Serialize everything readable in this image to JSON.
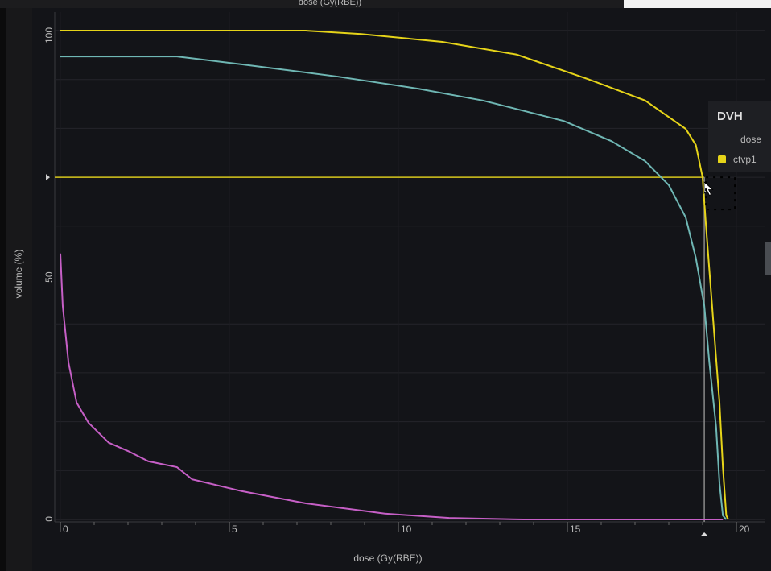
{
  "chart_data": {
    "type": "line",
    "top_label": "dose (Gy(RBE))",
    "x_label": "dose (Gy(RBE))",
    "y_label": "volume (%)",
    "legend_title": "DVH",
    "legend_subtitle": "dose",
    "xlim": [
      0,
      20
    ],
    "ylim": [
      0,
      100
    ],
    "xticks": [
      0,
      5,
      10,
      15,
      20
    ],
    "xminorticks": [
      1,
      2,
      3,
      4,
      6,
      7,
      8,
      9,
      11,
      12,
      13,
      14,
      16,
      17,
      18,
      19
    ],
    "yticks": [
      0,
      50,
      100
    ],
    "ygrid": [
      10,
      20,
      30,
      40,
      60,
      70,
      80,
      90
    ],
    "grid": true,
    "cursor": {
      "dose": 19.05,
      "volume": 70,
      "color": "#d6c61c",
      "line_color": "#8a8a8a"
    },
    "series": [
      {
        "name": "ctvp1",
        "color": "#e6d419",
        "x": [
          0,
          7.26,
          8.9,
          11.3,
          13.5,
          15.6,
          17.3,
          18.5,
          18.8,
          19.0,
          19.1,
          19.3,
          19.5,
          19.6,
          19.7,
          19.76
        ],
        "values": [
          100,
          100,
          99.3,
          97.7,
          95.1,
          90.1,
          85.7,
          79.9,
          76.6,
          70,
          60.1,
          42,
          23.9,
          10.7,
          0.8,
          0
        ]
      },
      {
        "color": "#6fb7b4",
        "x": [
          0,
          3.45,
          5.36,
          8.2,
          10.6,
          12.5,
          14.9,
          16.3,
          17.3,
          18,
          18.5,
          18.8,
          19.05,
          19.2,
          19.4,
          19.5,
          19.6,
          19.7
        ],
        "values": [
          94.7,
          94.7,
          93.1,
          90.6,
          88.1,
          85.7,
          81.5,
          77.4,
          73.3,
          68.4,
          61.8,
          53.5,
          43.7,
          32.1,
          18.9,
          7.4,
          0.8,
          0
        ]
      },
      {
        "color": "#c65fc6",
        "x": [
          0,
          0.07,
          0.24,
          0.48,
          0.83,
          1.43,
          2.0,
          2.6,
          3.45,
          3.9,
          5.36,
          7.26,
          9.6,
          11.5,
          13.7,
          19.6
        ],
        "values": [
          54.4,
          43.7,
          32.1,
          23.9,
          19.8,
          15.7,
          14,
          11.9,
          10.7,
          8.2,
          5.8,
          3.3,
          1.2,
          0.3,
          0,
          0
        ]
      }
    ]
  }
}
